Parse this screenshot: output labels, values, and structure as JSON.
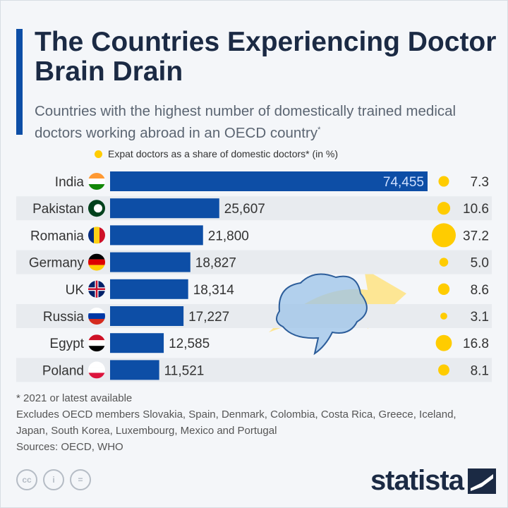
{
  "header": {
    "title": "The Countries Experiencing Doctor Brain Drain",
    "subtitle": "Countries with the highest number of domestically trained medical doctors working abroad in an OECD country",
    "subtitle_mark": "*"
  },
  "legend": {
    "label": "Expat doctors as a share of domestic doctors* (in %)",
    "color": "#ffcc00"
  },
  "chart_data": {
    "type": "bar",
    "orientation": "horizontal",
    "categories": [
      "India",
      "Pakistan",
      "Romania",
      "Germany",
      "UK",
      "Russia",
      "Egypt",
      "Poland"
    ],
    "series": [
      {
        "values": [
          74455,
          25607,
          21800,
          18827,
          18314,
          17227,
          12585,
          11521
        ],
        "labels": [
          "74,455",
          "25,607",
          "21,800",
          "18,827",
          "18,314",
          "17,227",
          "12,585",
          "11,521"
        ],
        "color": "#0d4ea6"
      },
      {
        "name": "Expat doctors as a share of domestic doctors* (in %)",
        "values": [
          7.3,
          10.6,
          37.2,
          5.0,
          8.6,
          3.1,
          16.8,
          8.1
        ],
        "labels": [
          "7.3",
          "10.6",
          "37.2",
          "5.0",
          "8.6",
          "3.1",
          "16.8",
          "8.1"
        ],
        "color": "#ffcc00",
        "mark": "bubble"
      }
    ],
    "flags": [
      "india-flag",
      "pakistan-flag",
      "romania-flag",
      "germany-flag",
      "uk-flag",
      "russia-flag",
      "egypt-flag",
      "poland-flag"
    ]
  },
  "footer": {
    "note": "* 2021 or latest available",
    "excludes": "Excludes OECD members Slovakia, Spain, Denmark, Colombia, Costa Rica, Greece, Iceland, Japan, South Korea, Luxembourg, Mexico and Portugal",
    "sources": "Sources: OECD, WHO"
  },
  "license": {
    "cc": "cc",
    "by": "i",
    "nd": "="
  },
  "brand": {
    "name": "statista"
  }
}
